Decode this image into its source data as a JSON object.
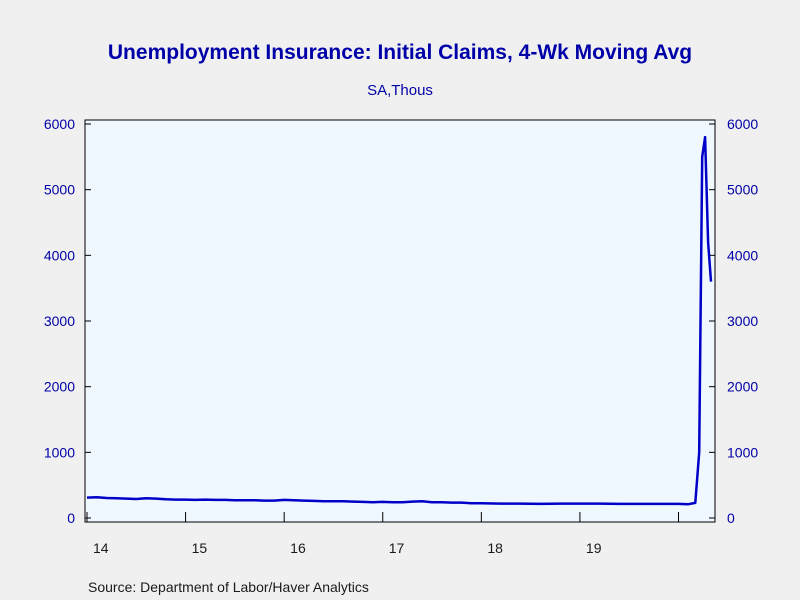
{
  "chart_data": {
    "type": "line",
    "title": "Unemployment Insurance: Initial Claims, 4-Wk Moving Avg",
    "subtitle": "SA,Thous",
    "source": "Source:  Department of Labor/Haver Analytics",
    "ylim": [
      0,
      6000
    ],
    "y_ticks": [
      0,
      1000,
      2000,
      3000,
      4000,
      5000,
      6000
    ],
    "x_range": [
      2014.0,
      2020.35
    ],
    "x_tick_labels": [
      {
        "label": "14",
        "year": 2014
      },
      {
        "label": "15",
        "year": 2015
      },
      {
        "label": "16",
        "year": 2016
      },
      {
        "label": "17",
        "year": 2017
      },
      {
        "label": "18",
        "year": 2018
      },
      {
        "label": "19",
        "year": 2019
      }
    ],
    "grid": false,
    "line_color": "#0000c8",
    "plot_background": "#f0f8ff",
    "series": [
      {
        "x": [
          2014.0,
          2014.1,
          2014.2,
          2014.3,
          2014.4,
          2014.5,
          2014.6,
          2014.7,
          2014.8,
          2014.9,
          2015.0,
          2015.1,
          2015.2,
          2015.3,
          2015.4,
          2015.5,
          2015.6,
          2015.7,
          2015.8,
          2015.9,
          2016.0,
          2016.1,
          2016.2,
          2016.3,
          2016.4,
          2016.5,
          2016.6,
          2016.7,
          2016.8,
          2016.9,
          2017.0,
          2017.1,
          2017.2,
          2017.3,
          2017.4,
          2017.5,
          2017.6,
          2017.7,
          2017.8,
          2017.9,
          2018.0,
          2018.2,
          2018.4,
          2018.6,
          2018.8,
          2019.0,
          2019.2,
          2019.4,
          2019.6,
          2019.8,
          2020.0,
          2020.1,
          2020.17,
          2020.21,
          2020.24,
          2020.27,
          2020.3,
          2020.33
        ],
        "values": [
          310,
          315,
          305,
          300,
          295,
          290,
          300,
          295,
          285,
          280,
          280,
          275,
          280,
          275,
          275,
          270,
          270,
          270,
          265,
          265,
          275,
          270,
          265,
          260,
          255,
          255,
          255,
          250,
          245,
          240,
          245,
          240,
          240,
          250,
          255,
          240,
          240,
          235,
          235,
          225,
          225,
          220,
          220,
          215,
          220,
          220,
          220,
          215,
          215,
          215,
          215,
          210,
          230,
          1000,
          5500,
          5800,
          4200,
          3600
        ]
      }
    ]
  }
}
